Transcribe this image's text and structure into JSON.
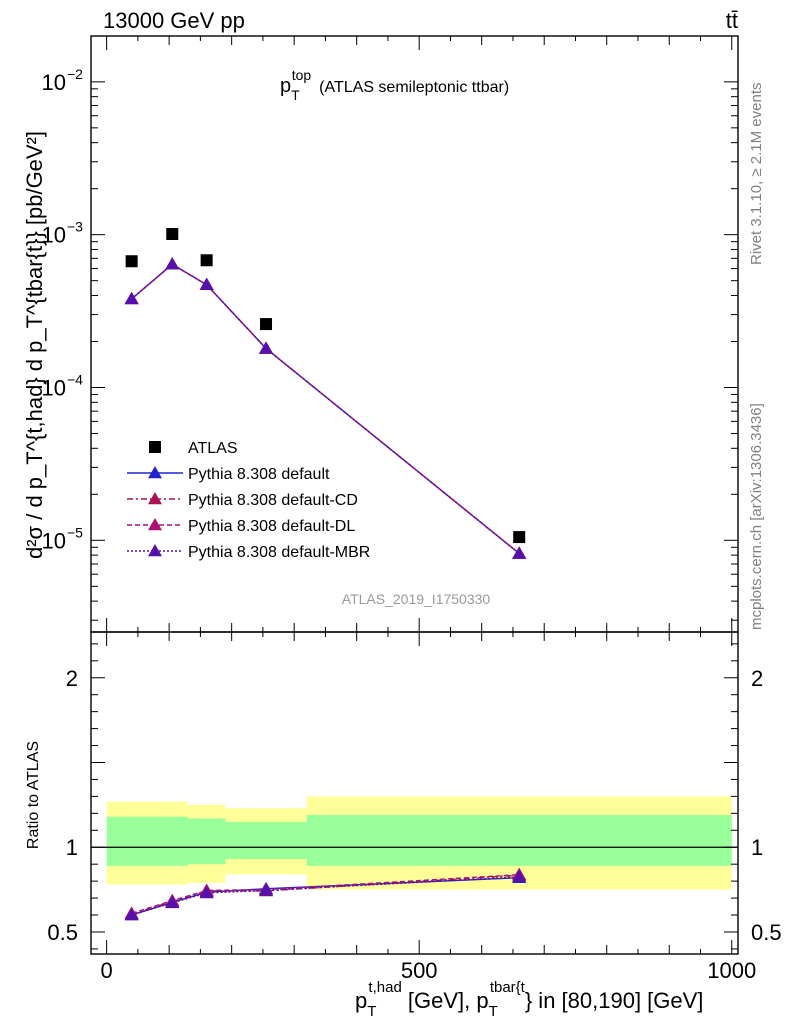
{
  "header": {
    "left": "13000 GeV pp",
    "right": "tt̄"
  },
  "side_labels": {
    "rivet": "Rivet 3.1.10, ≥ 2.1M events",
    "mcplots": "mcplots.cern.ch [arXiv:1306.3436]"
  },
  "chart_data": [
    {
      "type": "scatter",
      "title": "p_T^top (ATLAS semileptonic ttbar)",
      "title_main": "p",
      "title_sub": "T",
      "title_sup": "top",
      "title_rest": "(ATLAS semileptonic ttbar)",
      "analysis_id": "ATLAS_2019_I1750330",
      "ylabel": "d²σ / d p_T^{t,had} d p_T^{tbar{t}} [pb/GeV²]",
      "y_scale": "log",
      "xlim": [
        -25,
        1010
      ],
      "ylim_log10": [
        -5.6,
        -1.7
      ],
      "y_ticks": [
        {
          "value": 0.01,
          "mantissa": "10",
          "exp": "−2"
        },
        {
          "value": 0.001,
          "mantissa": "10",
          "exp": "−3"
        },
        {
          "value": 0.0001,
          "mantissa": "10",
          "exp": "−4"
        },
        {
          "value": 1e-05,
          "mantissa": "10",
          "exp": "−5"
        }
      ],
      "x_ticks": [
        0,
        500,
        1000
      ],
      "legend_position": "lower-left",
      "series": [
        {
          "name": "ATLAS",
          "marker": "square",
          "color": "#000000",
          "x": [
            40,
            105,
            160,
            255,
            660
          ],
          "y": [
            0.00067,
            0.00101,
            0.00068,
            0.00026,
            1.05e-05
          ]
        },
        {
          "name": "Pythia 8.308 default",
          "marker": "triangle",
          "line": "solid",
          "color": "#2424cc",
          "x": [
            40,
            105,
            160,
            255,
            660
          ],
          "y": [
            0.00038,
            0.00064,
            0.00047,
            0.00018,
            8.2e-06
          ]
        },
        {
          "name": "Pythia 8.308 default-CD",
          "marker": "triangle",
          "line": "dashdot",
          "color": "#aa1155",
          "x": [
            40,
            105,
            160,
            255,
            660
          ],
          "y": [
            0.00038,
            0.00064,
            0.00047,
            0.00018,
            8.2e-06
          ]
        },
        {
          "name": "Pythia 8.308 default-DL",
          "marker": "triangle",
          "line": "dashed",
          "color": "#aa1177",
          "x": [
            40,
            105,
            160,
            255,
            660
          ],
          "y": [
            0.00038,
            0.00064,
            0.00047,
            0.00018,
            8.2e-06
          ]
        },
        {
          "name": "Pythia 8.308 default-MBR",
          "marker": "triangle",
          "line": "dotted",
          "color": "#5511aa",
          "x": [
            40,
            105,
            160,
            255,
            660
          ],
          "y": [
            0.00038,
            0.00064,
            0.00047,
            0.00018,
            8.2e-06
          ]
        }
      ]
    },
    {
      "type": "scatter",
      "ylabel": "Ratio to ATLAS",
      "xlabel": "p_T^{t,had} [GeV], p_T^{tbar{t}} in [80,190] [GeV]",
      "xlabel_parts": {
        "p1": "p",
        "sub1": "T",
        "sup1": "t,had",
        "mid": " [GeV], ",
        "p2": "p",
        "sub2": "T",
        "sup2": "tbar{t",
        "rest": "} in [80,190] [GeV]"
      },
      "xlim": [
        -25,
        1010
      ],
      "ylim": [
        0.37,
        2.27
      ],
      "y_ticks": [
        0.5,
        1,
        2
      ],
      "x_ticks": [
        0,
        500,
        1000
      ],
      "uncertainty_bands": [
        {
          "x0": 0,
          "x1": 130,
          "inner": [
            0.89,
            1.18
          ],
          "outer": [
            0.78,
            1.27
          ]
        },
        {
          "x0": 130,
          "x1": 190,
          "inner": [
            0.9,
            1.17
          ],
          "outer": [
            0.79,
            1.25
          ]
        },
        {
          "x0": 190,
          "x1": 320,
          "inner": [
            0.93,
            1.15
          ],
          "outer": [
            0.84,
            1.23
          ]
        },
        {
          "x0": 320,
          "x1": 1000,
          "inner": [
            0.89,
            1.19
          ],
          "outer": [
            0.75,
            1.3
          ]
        }
      ],
      "band_colors": {
        "inner": "#99ff99",
        "outer": "#ffff99"
      },
      "series": [
        {
          "name": "Pythia 8.308 default",
          "color": "#2424cc",
          "line": "solid",
          "x": [
            40,
            105,
            160,
            255,
            660
          ],
          "y": [
            0.6,
            0.675,
            0.735,
            0.755,
            0.82
          ]
        },
        {
          "name": "Pythia 8.308 default-CD",
          "color": "#aa1155",
          "line": "dashdot",
          "x": [
            40,
            105,
            160,
            255,
            660
          ],
          "y": [
            0.605,
            0.68,
            0.742,
            0.742,
            0.835
          ]
        },
        {
          "name": "Pythia 8.308 default-DL",
          "color": "#aa1177",
          "line": "dashed",
          "x": [
            40,
            105,
            160,
            255,
            660
          ],
          "y": [
            0.61,
            0.685,
            0.745,
            0.75,
            0.838
          ]
        },
        {
          "name": "Pythia 8.308 default-MBR",
          "color": "#5511aa",
          "line": "dotted",
          "x": [
            40,
            105,
            160,
            255,
            660
          ],
          "y": [
            0.6,
            0.672,
            0.73,
            0.745,
            0.825
          ]
        }
      ]
    }
  ]
}
